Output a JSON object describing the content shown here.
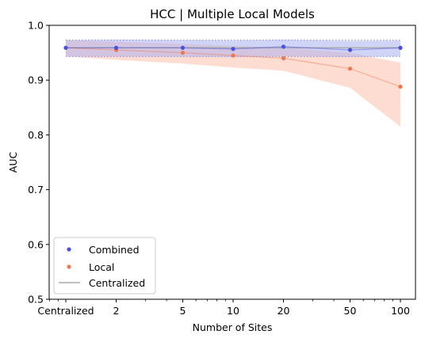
{
  "chart_data": {
    "type": "line",
    "title": "HCC | Multiple Local Models",
    "xlabel": "Number of Sites",
    "ylabel": "AUC",
    "x_scale": "log",
    "x_ticks": [
      {
        "value": 1,
        "label": "Centralized"
      },
      {
        "value": 2,
        "label": "2"
      },
      {
        "value": 5,
        "label": "5"
      },
      {
        "value": 10,
        "label": "10"
      },
      {
        "value": 20,
        "label": "20"
      },
      {
        "value": 50,
        "label": "50"
      },
      {
        "value": 100,
        "label": "100"
      }
    ],
    "x": [
      1,
      2,
      5,
      10,
      20,
      50,
      100
    ],
    "ylim": [
      0.5,
      1.0
    ],
    "y_ticks": [
      0.5,
      0.6,
      0.7,
      0.8,
      0.9,
      1.0
    ],
    "y_tick_labels": [
      "0.5",
      "0.6",
      "0.7",
      "0.8",
      "0.9",
      "1.0"
    ],
    "grid": false,
    "legend_position": "lower-left",
    "series": [
      {
        "name": "Combined",
        "marker": "point",
        "color": "#4a4fe0",
        "band_color": "#aab4ff",
        "values": [
          0.959,
          0.959,
          0.959,
          0.957,
          0.961,
          0.955,
          0.959
        ],
        "lower": [
          0.943,
          0.943,
          0.943,
          0.942,
          0.944,
          0.942,
          0.944
        ],
        "upper": [
          0.973,
          0.974,
          0.973,
          0.972,
          0.974,
          0.971,
          0.972
        ]
      },
      {
        "name": "Local",
        "marker": "point",
        "color": "#f07850",
        "band_color": "#fbb49a",
        "values": [
          0.959,
          0.955,
          0.95,
          0.945,
          0.94,
          0.921,
          0.888
        ],
        "lower": [
          0.943,
          0.937,
          0.93,
          0.923,
          0.917,
          0.886,
          0.815
        ],
        "upper": [
          0.973,
          0.97,
          0.966,
          0.962,
          0.96,
          0.95,
          0.932
        ]
      },
      {
        "name": "Centralized",
        "marker": "line",
        "color": "#aaaaaa",
        "value": 0.959,
        "lower": 0.943,
        "upper": 0.973
      }
    ]
  }
}
